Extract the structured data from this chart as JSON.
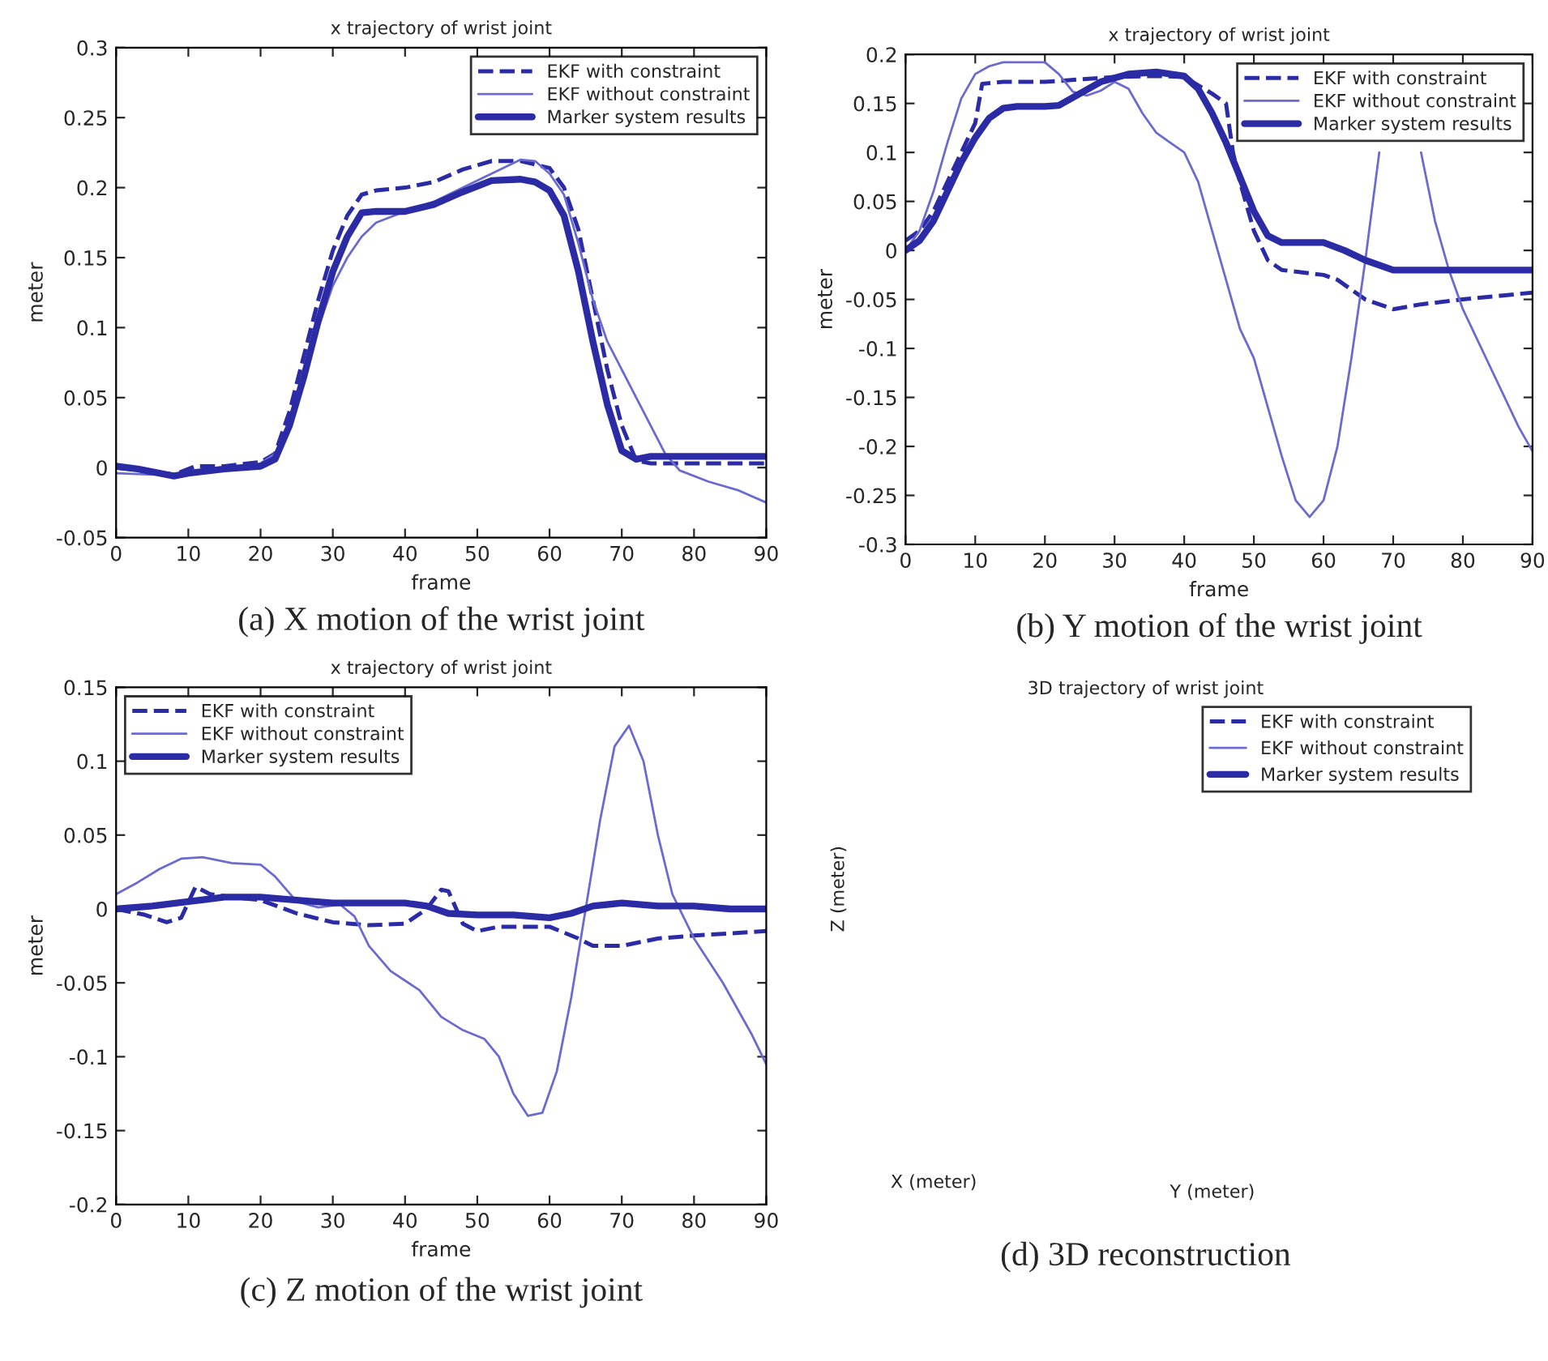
{
  "chart_data": [
    {
      "type": "line",
      "title": "x trajectory of wrist joint",
      "xlabel": "frame",
      "ylabel": "meter",
      "annotations": [
        "(a) X motion of the wrist joint"
      ],
      "xlim": [
        0,
        90
      ],
      "xticks": [
        0,
        10,
        20,
        30,
        40,
        50,
        60,
        70,
        80,
        90
      ],
      "ylim": [
        -0.05,
        0.3
      ],
      "yticks": [
        -0.05,
        0,
        0.05,
        0.1,
        0.15,
        0.2,
        0.25,
        0.3
      ],
      "legend": "top right",
      "grid": false,
      "series": [
        {
          "name": "EKF with constraint",
          "color": "#2b2ba6",
          "line_style": "dashed",
          "x": [
            0,
            5,
            8,
            11,
            15,
            20,
            22,
            24,
            26,
            28,
            30,
            32,
            34,
            36,
            40,
            44,
            48,
            52,
            56,
            60,
            62,
            64,
            66,
            68,
            70,
            72,
            74,
            80,
            90
          ],
          "values": [
            0.0,
            -0.003,
            -0.005,
            0.001,
            0.001,
            0.004,
            0.01,
            0.04,
            0.08,
            0.12,
            0.155,
            0.18,
            0.195,
            0.198,
            0.2,
            0.204,
            0.213,
            0.219,
            0.219,
            0.214,
            0.2,
            0.17,
            0.12,
            0.07,
            0.03,
            0.005,
            0.003,
            0.003,
            0.003
          ]
        },
        {
          "name": "EKF without constraint",
          "color": "#6a6ad0",
          "line_style": "solid",
          "x": [
            0,
            5,
            10,
            15,
            20,
            22,
            24,
            26,
            28,
            30,
            32,
            34,
            36,
            40,
            44,
            48,
            52,
            56,
            58,
            60,
            62,
            64,
            66,
            68,
            70,
            72,
            74,
            76,
            78,
            82,
            86,
            90
          ],
          "values": [
            -0.004,
            -0.005,
            -0.004,
            -0.001,
            0.003,
            0.01,
            0.03,
            0.06,
            0.1,
            0.13,
            0.15,
            0.165,
            0.175,
            0.183,
            0.19,
            0.2,
            0.21,
            0.22,
            0.219,
            0.21,
            0.195,
            0.16,
            0.12,
            0.09,
            0.07,
            0.05,
            0.03,
            0.01,
            -0.002,
            -0.01,
            -0.016,
            -0.025
          ]
        },
        {
          "name": "Marker system results",
          "color": "#2b2ba6",
          "line_style": "solid",
          "x": [
            0,
            3,
            6,
            8,
            10,
            15,
            20,
            22,
            24,
            26,
            28,
            30,
            32,
            34,
            36,
            40,
            44,
            48,
            52,
            56,
            58,
            60,
            62,
            64,
            66,
            68,
            70,
            72,
            74,
            80,
            90
          ],
          "values": [
            0.001,
            -0.001,
            -0.004,
            -0.006,
            -0.004,
            -0.001,
            0.001,
            0.006,
            0.03,
            0.065,
            0.105,
            0.14,
            0.165,
            0.182,
            0.183,
            0.183,
            0.188,
            0.197,
            0.205,
            0.206,
            0.204,
            0.198,
            0.18,
            0.14,
            0.09,
            0.045,
            0.012,
            0.006,
            0.008,
            0.008,
            0.008
          ]
        }
      ]
    },
    {
      "type": "line",
      "title": "x trajectory of wrist joint",
      "xlabel": "frame",
      "ylabel": "meter",
      "annotations": [
        "(b) Y motion of the wrist joint"
      ],
      "xlim": [
        0,
        90
      ],
      "xticks": [
        0,
        10,
        20,
        30,
        40,
        50,
        60,
        70,
        80,
        90
      ],
      "ylim": [
        -0.3,
        0.2
      ],
      "yticks": [
        -0.3,
        -0.25,
        -0.2,
        -0.15,
        -0.1,
        -0.05,
        0,
        0.05,
        0.1,
        0.15,
        0.2
      ],
      "legend": "top right",
      "grid": false,
      "series": [
        {
          "name": "EKF with constraint",
          "color": "#2b2ba6",
          "line_style": "dashed",
          "x": [
            0,
            2,
            4,
            6,
            8,
            10,
            11,
            14,
            20,
            30,
            36,
            40,
            44,
            46,
            47,
            48,
            50,
            52,
            54,
            60,
            62,
            66,
            70,
            74,
            80,
            90
          ],
          "values": [
            0.01,
            0.02,
            0.04,
            0.07,
            0.1,
            0.13,
            0.17,
            0.172,
            0.172,
            0.177,
            0.178,
            0.177,
            0.16,
            0.15,
            0.1,
            0.07,
            0.02,
            -0.01,
            -0.02,
            -0.025,
            -0.03,
            -0.05,
            -0.06,
            -0.055,
            -0.05,
            -0.043
          ]
        },
        {
          "name": "EKF without constraint",
          "color": "#6a6ad0",
          "line_style": "solid",
          "x": [
            0,
            2,
            4,
            6,
            8,
            10,
            12,
            14,
            20,
            22,
            24,
            26,
            28,
            30,
            32,
            34,
            36,
            38,
            40,
            42,
            44,
            46,
            48,
            50,
            52,
            54,
            56,
            58,
            60,
            62,
            64,
            66,
            68,
            70,
            72,
            74,
            76,
            78,
            80,
            84,
            88,
            90
          ],
          "values": [
            0.0,
            0.02,
            0.06,
            0.11,
            0.155,
            0.18,
            0.188,
            0.192,
            0.192,
            0.18,
            0.162,
            0.158,
            0.163,
            0.172,
            0.165,
            0.14,
            0.12,
            0.11,
            0.1,
            0.07,
            0.02,
            -0.03,
            -0.08,
            -0.11,
            -0.16,
            -0.21,
            -0.255,
            -0.272,
            -0.255,
            -0.2,
            -0.11,
            -0.01,
            0.1,
            null,
            null,
            0.1,
            0.03,
            -0.02,
            -0.06,
            -0.12,
            -0.18,
            -0.205
          ]
        },
        {
          "name": "Marker system results",
          "color": "#2b2ba6",
          "line_style": "solid",
          "x": [
            0,
            2,
            4,
            6,
            8,
            10,
            12,
            14,
            16,
            20,
            22,
            25,
            28,
            32,
            36,
            40,
            42,
            44,
            46,
            48,
            50,
            52,
            54,
            60,
            63,
            66,
            70,
            80,
            90
          ],
          "values": [
            0.0,
            0.01,
            0.03,
            0.06,
            0.09,
            0.115,
            0.135,
            0.145,
            0.147,
            0.147,
            0.148,
            0.16,
            0.172,
            0.18,
            0.182,
            0.178,
            0.165,
            0.14,
            0.11,
            0.075,
            0.04,
            0.015,
            0.008,
            0.008,
            0.0,
            -0.01,
            -0.02,
            -0.02,
            -0.02
          ]
        }
      ]
    },
    {
      "type": "line",
      "title": "x trajectory of wrist joint",
      "xlabel": "frame",
      "ylabel": "meter",
      "annotations": [
        "(c) Z motion of the wrist joint"
      ],
      "xlim": [
        0,
        90
      ],
      "xticks": [
        0,
        10,
        20,
        30,
        40,
        50,
        60,
        70,
        80,
        90
      ],
      "ylim": [
        -0.2,
        0.15
      ],
      "yticks": [
        -0.2,
        -0.15,
        -0.1,
        -0.05,
        0,
        0.05,
        0.1,
        0.15
      ],
      "legend": "top left",
      "grid": false,
      "series": [
        {
          "name": "EKF with constraint",
          "color": "#2b2ba6",
          "line_style": "dashed",
          "x": [
            0,
            4,
            7,
            9,
            11,
            13,
            16,
            20,
            25,
            30,
            35,
            40,
            43,
            45,
            46,
            48,
            50,
            53,
            60,
            64,
            66,
            70,
            75,
            80,
            90
          ],
          "values": [
            0.0,
            -0.004,
            -0.009,
            -0.006,
            0.015,
            0.01,
            0.008,
            0.006,
            -0.003,
            -0.009,
            -0.011,
            -0.01,
            0.0,
            0.013,
            0.012,
            -0.01,
            -0.015,
            -0.012,
            -0.012,
            -0.02,
            -0.025,
            -0.025,
            -0.02,
            -0.018,
            -0.015
          ]
        },
        {
          "name": "EKF without constraint",
          "color": "#6a6ad0",
          "line_style": "solid",
          "x": [
            0,
            3,
            6,
            9,
            12,
            16,
            20,
            22,
            25,
            28,
            31,
            33,
            35,
            38,
            42,
            45,
            48,
            51,
            53,
            55,
            57,
            59,
            61,
            63,
            65,
            67,
            69,
            71,
            73,
            75,
            77,
            80,
            84,
            88,
            90
          ],
          "values": [
            0.01,
            0.018,
            0.027,
            0.034,
            0.035,
            0.031,
            0.03,
            0.022,
            0.005,
            0.001,
            0.003,
            -0.005,
            -0.025,
            -0.042,
            -0.055,
            -0.073,
            -0.082,
            -0.088,
            -0.1,
            -0.125,
            -0.14,
            -0.138,
            -0.11,
            -0.06,
            0.0,
            0.06,
            0.11,
            0.124,
            0.1,
            0.05,
            0.01,
            -0.02,
            -0.05,
            -0.085,
            -0.105
          ]
        },
        {
          "name": "Marker system results",
          "color": "#2b2ba6",
          "line_style": "solid",
          "x": [
            0,
            5,
            10,
            15,
            20,
            25,
            30,
            35,
            40,
            43,
            46,
            50,
            55,
            60,
            63,
            66,
            70,
            75,
            80,
            85,
            90
          ],
          "values": [
            0.0,
            0.002,
            0.005,
            0.008,
            0.008,
            0.006,
            0.004,
            0.004,
            0.004,
            0.002,
            -0.003,
            -0.004,
            -0.004,
            -0.006,
            -0.003,
            0.002,
            0.004,
            0.002,
            0.002,
            0.0,
            0.0
          ]
        }
      ]
    },
    {
      "type": "other",
      "title": "3D trajectory of wrist joint",
      "xlabel": "X (meter)",
      "ylabel": "Y (meter)",
      "annotations": [
        "Z (meter)",
        "(d) 3D reconstruction"
      ],
      "legend": "top right",
      "series": [
        {
          "name": "EKF with constraint",
          "color": "#2b2ba6",
          "line_style": "dashed"
        },
        {
          "name": "EKF without constraint",
          "color": "#6a6ad0",
          "line_style": "solid"
        },
        {
          "name": "Marker system results",
          "color": "#2b2ba6",
          "line_style": "solid"
        }
      ]
    }
  ]
}
